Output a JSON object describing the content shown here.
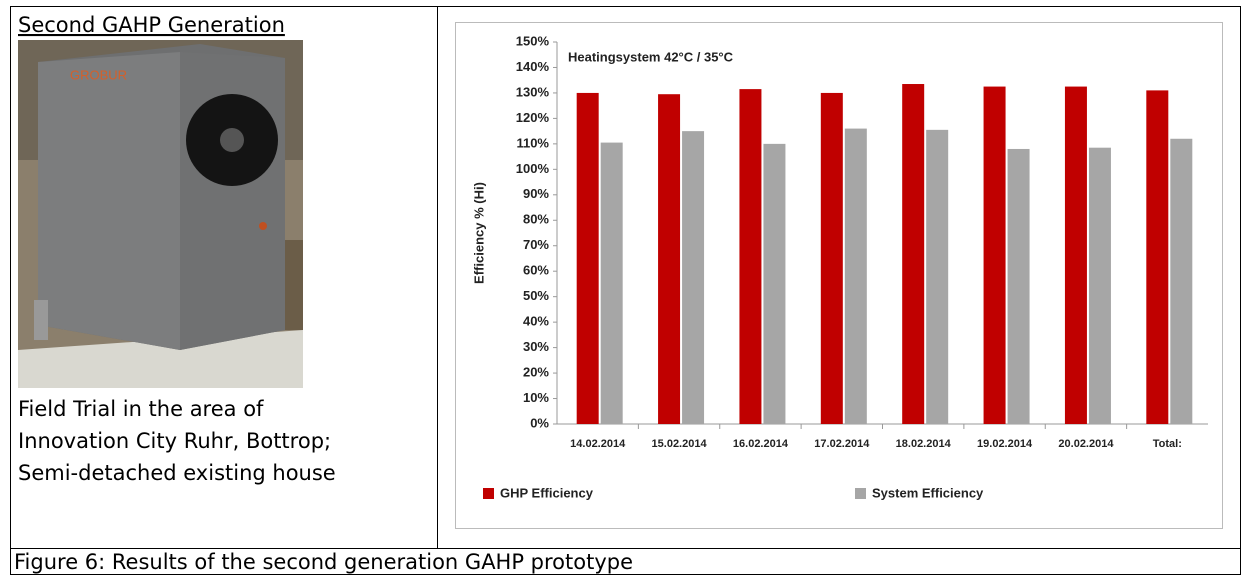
{
  "left": {
    "heading": "Second GAHP Generation",
    "lines": [
      "Field Trial in the area of",
      "Innovation City Ruhr, Bottrop;",
      "Semi-detached  existing house"
    ]
  },
  "caption": "Figure 6: Results of the second generation GAHP prototype",
  "chart_data": {
    "type": "bar",
    "annotation": "Heatingsystem 42°C / 35°C",
    "y_label": "Efficiency % (Hi)",
    "categories": [
      "14.02.2014",
      "15.02.2014",
      "16.02.2014",
      "17.02.2014",
      "18.02.2014",
      "19.02.2014",
      "20.02.2014",
      "Total:"
    ],
    "series": [
      {
        "name": "GHP Efficiency",
        "color": "#c00000",
        "values": [
          130,
          129.5,
          131.5,
          130,
          133.5,
          132.5,
          132.5,
          131
        ]
      },
      {
        "name": "System Efficiency",
        "color": "#a6a6a6",
        "values": [
          110.5,
          115,
          110,
          116,
          115.5,
          108,
          108.5,
          112
        ]
      }
    ],
    "ylim": [
      0,
      150
    ],
    "yticks": [
      {
        "value": 0,
        "label": "0%"
      },
      {
        "value": 10,
        "label": "10%"
      },
      {
        "value": 20,
        "label": "20%"
      },
      {
        "value": 30,
        "label": "30%"
      },
      {
        "value": 40,
        "label": "40%"
      },
      {
        "value": 50,
        "label": "50%"
      },
      {
        "value": 60,
        "label": "60%"
      },
      {
        "value": 70,
        "label": "70%"
      },
      {
        "value": 80,
        "label": "80%"
      },
      {
        "value": 90,
        "label": "90%"
      },
      {
        "value": 100,
        "label": "100%"
      },
      {
        "value": 110,
        "label": "110%"
      },
      {
        "value": 120,
        "label": "120%"
      },
      {
        "value": 130,
        "label": "130%"
      },
      {
        "value": 140,
        "label": "140%"
      },
      {
        "value": 150,
        "label": "150%"
      }
    ],
    "legend": "bottom"
  }
}
